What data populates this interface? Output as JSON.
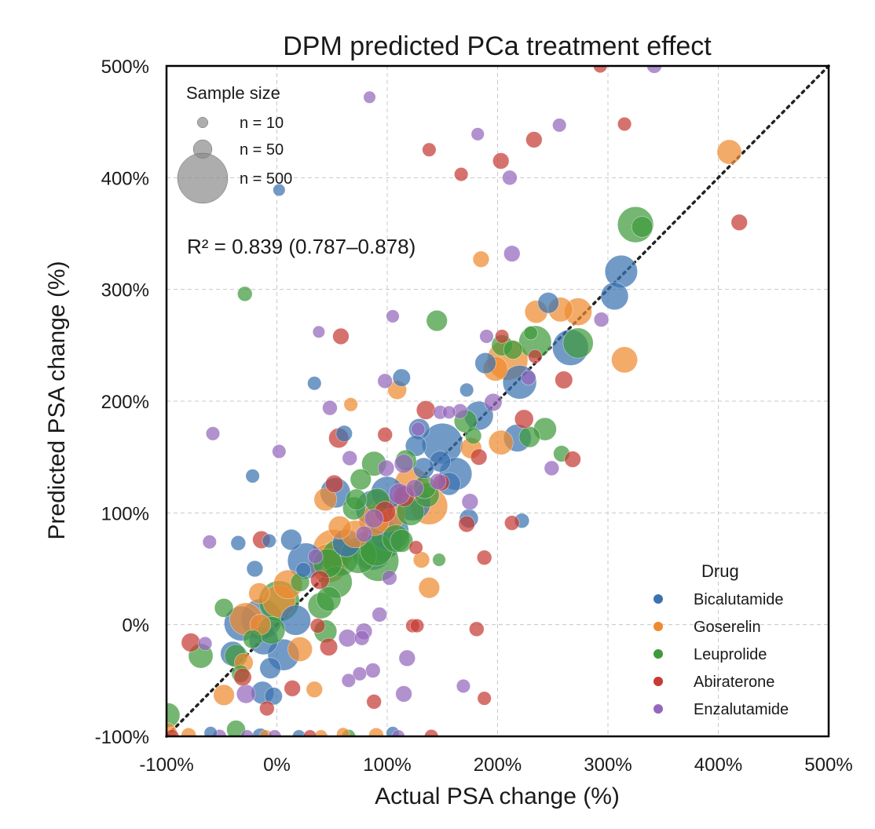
{
  "chart_data": {
    "type": "scatter",
    "title": "DPM predicted PCa treatment effect",
    "xlabel": "Actual PSA change (%)",
    "ylabel": "Predicted PSA change (%)",
    "xlim": [
      -100,
      500
    ],
    "ylim": [
      -100,
      500
    ],
    "xticks": [
      -100,
      0,
      100,
      200,
      300,
      400,
      500
    ],
    "yticks": [
      -100,
      0,
      100,
      200,
      300,
      400,
      500
    ],
    "xtick_labels": [
      "-100%",
      "0%",
      "100%",
      "200%",
      "300%",
      "400%",
      "500%"
    ],
    "ytick_labels": [
      "-100%",
      "0%",
      "100%",
      "200%",
      "300%",
      "400%",
      "500%"
    ],
    "grid": true,
    "reference_line": "y = x",
    "annotation": "R² = 0.839 (0.787–0.878)",
    "size_legend": {
      "title": "Sample size",
      "placement": "top-left",
      "entries": [
        {
          "label": "n = 10",
          "n": 10
        },
        {
          "label": "n = 50",
          "n": 50
        },
        {
          "label": "n = 500",
          "n": 500
        }
      ]
    },
    "color_legend": {
      "title": "Drug",
      "placement": "bottom-right",
      "entries": [
        {
          "label": "Bicalutamide",
          "color": "#3b73b0"
        },
        {
          "label": "Goserelin",
          "color": "#ef8a30"
        },
        {
          "label": "Leuprolide",
          "color": "#3f9a3c"
        },
        {
          "label": "Abiraterone",
          "color": "#c63b34"
        },
        {
          "label": "Enzalutamide",
          "color": "#9467bd"
        }
      ]
    },
    "series": [
      {
        "name": "Bicalutamide",
        "color": "#3b73b0",
        "points": [
          [
            312,
            316,
            120
          ],
          [
            306,
            294,
            80
          ],
          [
            246,
            288,
            40
          ],
          [
            266,
            248,
            150
          ],
          [
            189,
            234,
            40
          ],
          [
            220,
            217,
            130
          ],
          [
            183,
            187,
            90
          ],
          [
            218,
            167,
            80
          ],
          [
            150,
            162,
            200
          ],
          [
            129,
            175,
            40
          ],
          [
            162,
            135,
            120
          ],
          [
            126,
            160,
            40
          ],
          [
            113,
            221,
            25
          ],
          [
            61,
            171,
            20
          ],
          [
            34,
            216,
            12
          ],
          [
            -22,
            133,
            12
          ],
          [
            26,
            57,
            150
          ],
          [
            -6,
            -39,
            40
          ],
          [
            -32,
            1,
            140
          ],
          [
            -14,
            5,
            200
          ],
          [
            17,
            4,
            100
          ],
          [
            -12,
            -14,
            90
          ],
          [
            6,
            -27,
            110
          ],
          [
            -13,
            -61,
            50
          ],
          [
            -3,
            -64,
            25
          ],
          [
            -40,
            -26,
            60
          ],
          [
            -20,
            50,
            20
          ],
          [
            -35,
            73,
            15
          ],
          [
            -7,
            75,
            12
          ],
          [
            13,
            76,
            40
          ],
          [
            24,
            49,
            15
          ],
          [
            63,
            73,
            80
          ],
          [
            88,
            104,
            160
          ],
          [
            95,
            76,
            200
          ],
          [
            102,
            83,
            180
          ],
          [
            86,
            67,
            200
          ],
          [
            123,
            109,
            150
          ],
          [
            100,
            118,
            120
          ],
          [
            53,
            118,
            100
          ],
          [
            148,
            146,
            40
          ],
          [
            174,
            95,
            30
          ],
          [
            222,
            93,
            15
          ],
          [
            156,
            126,
            50
          ],
          [
            133,
            140,
            40
          ],
          [
            172,
            210,
            12
          ],
          [
            2,
            389,
            8
          ],
          [
            -15,
            -100,
            20
          ],
          [
            -60,
            -97,
            10
          ],
          [
            20,
            -100,
            10
          ],
          [
            105,
            -97,
            10
          ]
        ]
      },
      {
        "name": "Goserelin",
        "color": "#ef8a30",
        "points": [
          [
            410,
            423,
            60
          ],
          [
            315,
            237,
            70
          ],
          [
            235,
            280,
            50
          ],
          [
            257,
            282,
            60
          ],
          [
            273,
            280,
            80
          ],
          [
            209,
            237,
            200
          ],
          [
            198,
            229,
            60
          ],
          [
            109,
            210,
            30
          ],
          [
            176,
            158,
            40
          ],
          [
            203,
            163,
            60
          ],
          [
            138,
            106,
            160
          ],
          [
            122,
            126,
            130
          ],
          [
            100,
            99,
            150
          ],
          [
            88,
            93,
            100
          ],
          [
            71,
            81,
            80
          ],
          [
            57,
            87,
            50
          ],
          [
            51,
            67,
            200
          ],
          [
            47,
            55,
            180
          ],
          [
            10,
            36,
            90
          ],
          [
            2,
            21,
            120
          ],
          [
            -16,
            28,
            40
          ],
          [
            -28,
            5,
            120
          ],
          [
            -15,
            0,
            40
          ],
          [
            21,
            -22,
            60
          ],
          [
            -30,
            -34,
            30
          ],
          [
            -48,
            -63,
            40
          ],
          [
            34,
            -58,
            20
          ],
          [
            138,
            33,
            40
          ],
          [
            131,
            58,
            20
          ],
          [
            44,
            112,
            50
          ],
          [
            67,
            197,
            12
          ],
          [
            185,
            327,
            20
          ],
          [
            -100,
            -97,
            40
          ],
          [
            -80,
            -99,
            15
          ],
          [
            -10,
            -100,
            10
          ],
          [
            40,
            -100,
            10
          ],
          [
            90,
            -99,
            15
          ],
          [
            60,
            -98,
            10
          ]
        ]
      },
      {
        "name": "Leuprolide",
        "color": "#3f9a3c",
        "points": [
          [
            325,
            358,
            150
          ],
          [
            331,
            356,
            40
          ],
          [
            234,
            253,
            120
          ],
          [
            273,
            252,
            100
          ],
          [
            204,
            250,
            40
          ],
          [
            214,
            246,
            30
          ],
          [
            145,
            272,
            40
          ],
          [
            229,
            168,
            40
          ],
          [
            243,
            175,
            50
          ],
          [
            230,
            261,
            12
          ],
          [
            258,
            153,
            20
          ],
          [
            171,
            182,
            50
          ],
          [
            117,
            147,
            40
          ],
          [
            136,
            116,
            60
          ],
          [
            134,
            123,
            50
          ],
          [
            121,
            101,
            80
          ],
          [
            108,
            77,
            80
          ],
          [
            113,
            75,
            50
          ],
          [
            90,
            67,
            120
          ],
          [
            92,
            57,
            200
          ],
          [
            74,
            62,
            150
          ],
          [
            57,
            60,
            160
          ],
          [
            46,
            55,
            90
          ],
          [
            54,
            38,
            110
          ],
          [
            88,
            144,
            60
          ],
          [
            76,
            130,
            40
          ],
          [
            72,
            112,
            40
          ],
          [
            47,
            23,
            60
          ],
          [
            40,
            17,
            70
          ],
          [
            2,
            21,
            200
          ],
          [
            -5,
            -5,
            80
          ],
          [
            -22,
            -13,
            30
          ],
          [
            -37,
            -28,
            50
          ],
          [
            -69,
            -28,
            60
          ],
          [
            -33,
            -44,
            25
          ],
          [
            -48,
            15,
            30
          ],
          [
            21,
            38,
            30
          ],
          [
            -29,
            296,
            15
          ],
          [
            147,
            58,
            10
          ],
          [
            178,
            169,
            20
          ],
          [
            70,
            104,
            50
          ],
          [
            91,
            111,
            60
          ],
          [
            44,
            -6,
            50
          ],
          [
            -99,
            -81,
            60
          ],
          [
            -37,
            -94,
            30
          ],
          [
            65,
            -100,
            12
          ]
        ]
      },
      {
        "name": "Abiraterone",
        "color": "#c63b34",
        "points": [
          [
            419,
            360,
            20
          ],
          [
            315,
            448,
            12
          ],
          [
            233,
            434,
            20
          ],
          [
            203,
            415,
            20
          ],
          [
            138,
            425,
            12
          ],
          [
            167,
            403,
            12
          ],
          [
            58,
            258,
            20
          ],
          [
            204,
            258,
            12
          ],
          [
            234,
            240,
            12
          ],
          [
            260,
            219,
            25
          ],
          [
            224,
            184,
            30
          ],
          [
            135,
            192,
            30
          ],
          [
            98,
            170,
            15
          ],
          [
            56,
            167,
            35
          ],
          [
            149,
            127,
            20
          ],
          [
            115,
            115,
            40
          ],
          [
            172,
            90,
            20
          ],
          [
            213,
            91,
            15
          ],
          [
            268,
            148,
            20
          ],
          [
            183,
            150,
            20
          ],
          [
            126,
            69,
            12
          ],
          [
            188,
            60,
            15
          ],
          [
            39,
            40,
            30
          ],
          [
            -14,
            76,
            25
          ],
          [
            37,
            -1,
            15
          ],
          [
            47,
            -20,
            25
          ],
          [
            123,
            -1,
            12
          ],
          [
            181,
            -4,
            15
          ],
          [
            -78,
            -16,
            30
          ],
          [
            14,
            -57,
            20
          ],
          [
            -31,
            -47,
            25
          ],
          [
            -9,
            -75,
            15
          ],
          [
            88,
            -69,
            15
          ],
          [
            188,
            -66,
            12
          ],
          [
            127,
            -1,
            12
          ],
          [
            98,
            101,
            40
          ],
          [
            52,
            126,
            25
          ],
          [
            -95,
            -100,
            12
          ],
          [
            30,
            -100,
            10
          ],
          [
            140,
            -100,
            12
          ],
          [
            293,
            500,
            12
          ]
        ]
      },
      {
        "name": "Enzalutamide",
        "color": "#9467bd",
        "points": [
          [
            342,
            500,
            15
          ],
          [
            256,
            447,
            12
          ],
          [
            182,
            439,
            10
          ],
          [
            211,
            400,
            15
          ],
          [
            213,
            332,
            20
          ],
          [
            190,
            258,
            12
          ],
          [
            228,
            221,
            15
          ],
          [
            196,
            199,
            25
          ],
          [
            148,
            190,
            12
          ],
          [
            166,
            191,
            15
          ],
          [
            105,
            276,
            10
          ],
          [
            38,
            262,
            8
          ],
          [
            98,
            218,
            15
          ],
          [
            48,
            194,
            15
          ],
          [
            2,
            155,
            12
          ],
          [
            -58,
            171,
            12
          ],
          [
            66,
            149,
            15
          ],
          [
            156,
            190,
            10
          ],
          [
            111,
            117,
            40
          ],
          [
            115,
            144,
            30
          ],
          [
            125,
            122,
            25
          ],
          [
            146,
            128,
            20
          ],
          [
            175,
            110,
            20
          ],
          [
            128,
            175,
            12
          ],
          [
            99,
            140,
            20
          ],
          [
            88,
            95,
            30
          ],
          [
            79,
            81,
            20
          ],
          [
            35,
            61,
            15
          ],
          [
            -61,
            74,
            12
          ],
          [
            102,
            42,
            15
          ],
          [
            93,
            9,
            15
          ],
          [
            64,
            -12,
            25
          ],
          [
            79,
            -6,
            20
          ],
          [
            118,
            -30,
            20
          ],
          [
            87,
            -41,
            15
          ],
          [
            75,
            -44,
            12
          ],
          [
            65,
            -50,
            12
          ],
          [
            -28,
            -62,
            30
          ],
          [
            115,
            -62,
            20
          ],
          [
            169,
            -55,
            12
          ],
          [
            -65,
            -17,
            12
          ],
          [
            294,
            273,
            15
          ],
          [
            249,
            140,
            15
          ],
          [
            77,
            -12,
            15
          ],
          [
            -2,
            -100,
            10
          ],
          [
            -52,
            -100,
            12
          ],
          [
            84,
            472,
            8
          ],
          [
            110,
            -100,
            10
          ],
          [
            -27,
            -100,
            10
          ]
        ]
      }
    ]
  }
}
